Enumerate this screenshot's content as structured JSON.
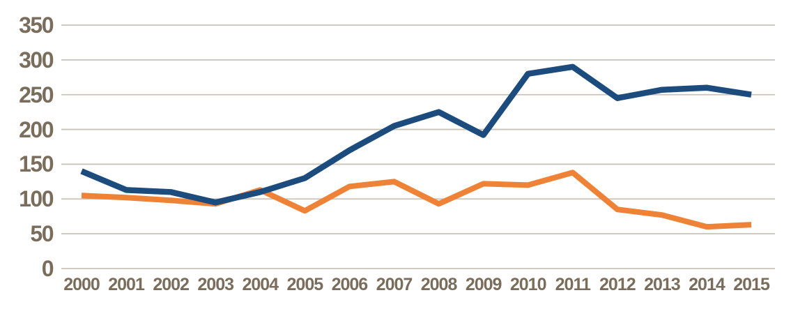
{
  "chart_data": {
    "type": "line",
    "title": "",
    "xlabel": "",
    "ylabel": "",
    "categories": [
      "2000",
      "2001",
      "2002",
      "2003",
      "2004",
      "2005",
      "2006",
      "2007",
      "2008",
      "2009",
      "2010",
      "2011",
      "2012",
      "2013",
      "2014",
      "2015"
    ],
    "series": [
      {
        "name": "orange-series",
        "color": "#ee8237",
        "stroke_width": 8,
        "values": [
          105,
          102,
          98,
          93,
          113,
          83,
          118,
          125,
          93,
          122,
          120,
          138,
          85,
          77,
          60,
          63
        ]
      },
      {
        "name": "blue-series",
        "color": "#1c4b7d",
        "stroke_width": 8.5,
        "values": [
          140,
          113,
          110,
          95,
          110,
          130,
          170,
          205,
          225,
          192,
          280,
          290,
          245,
          257,
          260,
          250
        ]
      }
    ],
    "ylim": [
      0,
      350
    ],
    "yticks": [
      350,
      300,
      250,
      200,
      150,
      100,
      50,
      0
    ],
    "grid": true,
    "legend_position": "none"
  },
  "axis": {
    "tick_label_color": "#7b6d5c",
    "grid_color": "#c9c2b7",
    "background_color": "#ffffff"
  }
}
